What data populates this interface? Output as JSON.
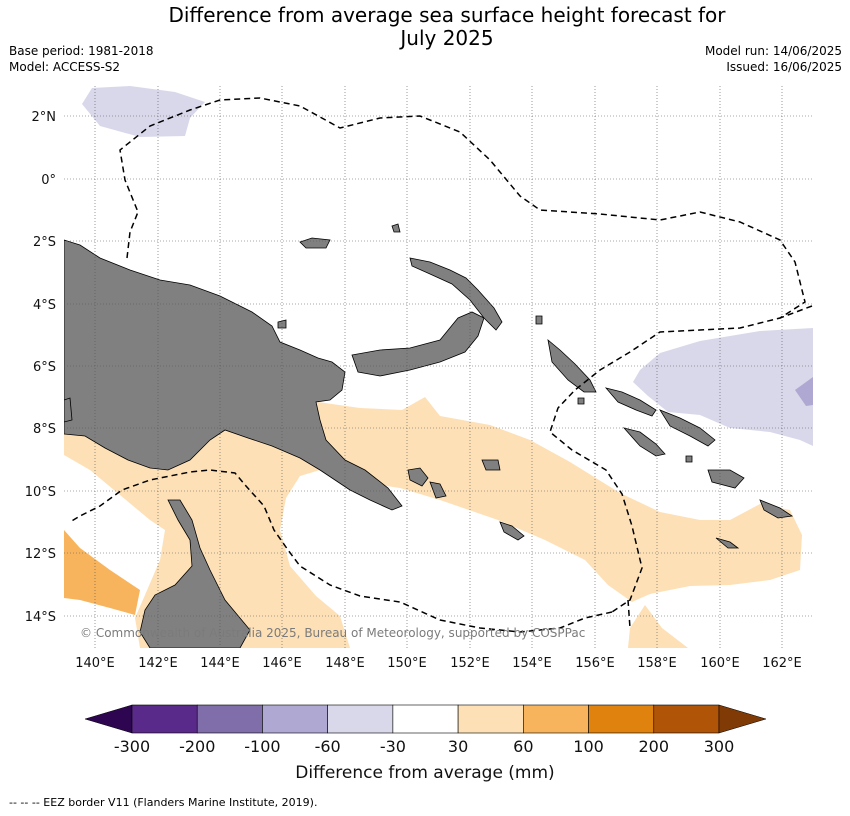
{
  "header": {
    "title_line1": "Difference from average sea surface height forecast for",
    "title_line2": "July 2025",
    "base_period": "Base period: 1981-2018",
    "model": "Model: ACCESS-S2",
    "model_run": "Model run: 14/06/2025",
    "issued": "Issued: 16/06/2025"
  },
  "map": {
    "lat_labels": [
      "2°N",
      "0°",
      "2°S",
      "4°S",
      "6°S",
      "8°S",
      "10°S",
      "12°S",
      "14°S"
    ],
    "lon_labels": [
      "140°E",
      "142°E",
      "144°E",
      "146°E",
      "148°E",
      "150°E",
      "152°E",
      "154°E",
      "156°E",
      "158°E",
      "160°E",
      "162°E"
    ],
    "copyright": "© Commonwealth of Australia 2025, Bureau of Meteorology, supported by COSPPac",
    "colors": {
      "land": "#808080",
      "ocean": "#ffffff",
      "minus_60_30": "#d8d8ea",
      "minus_100_60": "#afa8d2",
      "plus_30_60": "#fde0b6",
      "plus_60_100": "#f8b45c"
    }
  },
  "colorbar": {
    "title": "Difference from average (mm)",
    "labels": [
      "-300",
      "-200",
      "-100",
      "-60",
      "-30",
      "30",
      "60",
      "100",
      "200",
      "300"
    ],
    "colors": [
      "#5a2a8a",
      "#7f6eaa",
      "#afa8d2",
      "#d8d8ea",
      "#ffffff",
      "#fde0b6",
      "#f8b45c",
      "#e0820e",
      "#b05408"
    ],
    "under_color": "#2d0550",
    "over_color": "#7f3a06"
  },
  "footnote": "--  --  -- EEZ border V11 (Flanders Marine Institute, 2019)."
}
